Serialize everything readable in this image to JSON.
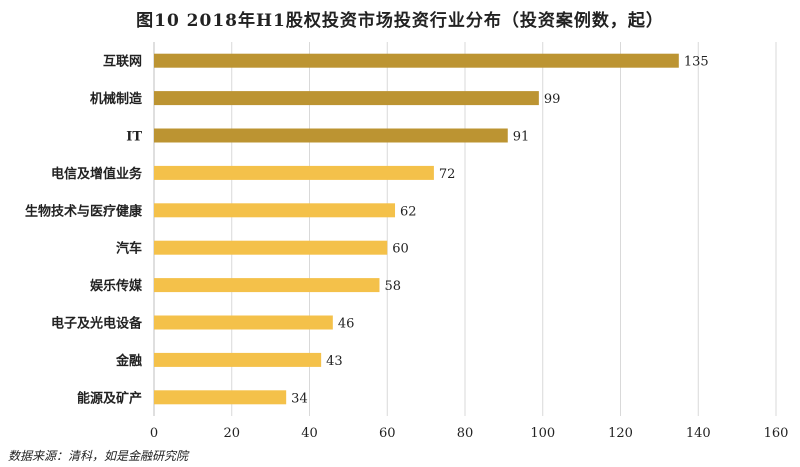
{
  "chart_data": {
    "type": "bar",
    "orientation": "horizontal",
    "title": "图10  2018年H1股权投资市场投资行业分布（投资案例数，起）",
    "categories": [
      "互联网",
      "机械制造",
      "IT",
      "电信及增值业务",
      "生物技术与医疗健康",
      "汽车",
      "娱乐传媒",
      "电子及光电设备",
      "金融",
      "能源及矿产"
    ],
    "values": [
      135,
      99,
      91,
      72,
      62,
      60,
      58,
      46,
      43,
      34
    ],
    "highlight_count": 3,
    "xlim": [
      0,
      160
    ],
    "xticks": [
      0,
      20,
      40,
      60,
      80,
      100,
      120,
      140,
      160
    ],
    "grid": true,
    "xlabel": "",
    "ylabel": ""
  },
  "colors": {
    "highlight": "#BC9432",
    "normal": "#F4C14A",
    "grid": "#D9D9D9"
  },
  "source": "数据来源：清科，如是金融研究院"
}
